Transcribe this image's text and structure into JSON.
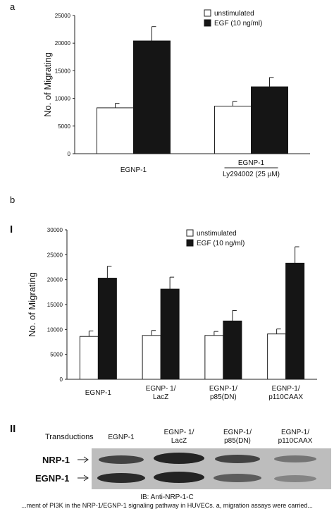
{
  "panel_a": {
    "label": "a"
  },
  "panel_b": {
    "label": "b",
    "section1": "I",
    "section2": "II"
  },
  "blot": {
    "transductions_label": "Transductions",
    "lanes": [
      {
        "line1": "EGNP-1",
        "line2": ""
      },
      {
        "line1": "EGNP- 1/",
        "line2": "LacZ"
      },
      {
        "line1": "EGNP-1/",
        "line2": "p85(DN)"
      },
      {
        "line1": "EGNP-1/",
        "line2": "p110CAAX"
      }
    ],
    "nrp_label": "NRP-1",
    "egnp_label": "EGNP-1",
    "ib_label": "IB: Anti-NRP-1-C"
  },
  "caption_fragment": "...ment of PI3K in the NRP-1/EGNP-1 signaling pathway in HUVECs. a, migration assays were carried...",
  "chart_data": [
    {
      "type": "bar",
      "ylabel": "No. of Migrating",
      "xlabel": "",
      "ylim": [
        0,
        25000
      ],
      "yticks": [
        "0",
        "5000",
        "10000",
        "15000",
        "20000",
        "25000"
      ],
      "categories": [
        "EGNP-1",
        "EGNP-1 / Ly294002 (25 µM)"
      ],
      "category_labels": [
        {
          "line1": "EGNP-1",
          "line2": ""
        },
        {
          "line1": "EGNP-1",
          "line2": "Ly294002 (25 µM)"
        }
      ],
      "series": [
        {
          "name": "unstimulated",
          "color": "#ffffff",
          "values": [
            8300,
            8600
          ],
          "errors": [
            800,
            900
          ]
        },
        {
          "name": "EGF (10 ng/ml)",
          "color": "#151515",
          "values": [
            20400,
            12100
          ],
          "errors": [
            2600,
            1700
          ]
        }
      ],
      "legend": "top-right",
      "grid": false
    },
    {
      "type": "bar",
      "ylabel": "No. of Migrating",
      "xlabel": "",
      "ylim": [
        0,
        30000
      ],
      "yticks": [
        "0",
        "5000",
        "10000",
        "15000",
        "20000",
        "25000",
        "30000"
      ],
      "categories": [
        "EGNP-1",
        "EGNP- 1/ LacZ",
        "EGNP-1/ p85(DN)",
        "EGNP-1/ p110CAAX"
      ],
      "category_labels": [
        {
          "line1": "EGNP-1",
          "line2": ""
        },
        {
          "line1": "EGNP- 1/",
          "line2": "LacZ"
        },
        {
          "line1": "EGNP-1/",
          "line2": "p85(DN)"
        },
        {
          "line1": "EGNP-1/",
          "line2": "p110CAAX"
        }
      ],
      "series": [
        {
          "name": "unstimulated",
          "color": "#ffffff",
          "values": [
            8600,
            8800,
            8800,
            9100
          ],
          "errors": [
            1100,
            1000,
            800,
            1000
          ]
        },
        {
          "name": "EGF (10 ng/ml)",
          "color": "#151515",
          "values": [
            20300,
            18100,
            11700,
            23300
          ],
          "errors": [
            2400,
            2400,
            2100,
            3300
          ]
        }
      ],
      "legend": "top-right",
      "grid": false
    }
  ]
}
